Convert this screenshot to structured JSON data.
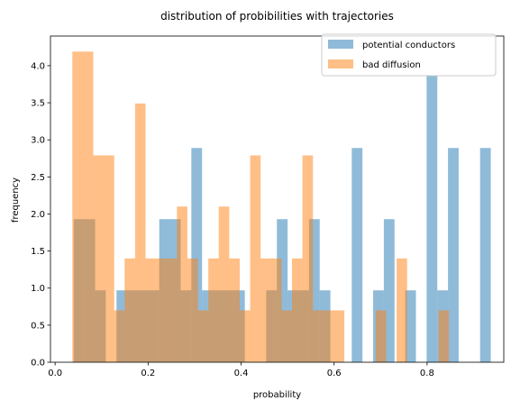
{
  "chart_data": {
    "type": "bar",
    "title": "distribution of probibilities with trajectories",
    "xlabel": "probability",
    "ylabel": "frequency",
    "xlim": [
      -0.01,
      0.965
    ],
    "ylim": [
      0,
      4.4
    ],
    "xticks": [
      "0.0",
      "0.2",
      "0.4",
      "0.6",
      "0.8"
    ],
    "xtick_values": [
      0.0,
      0.2,
      0.4,
      0.6,
      0.8
    ],
    "yticks": [
      "0.0",
      "0.5",
      "1.0",
      "1.5",
      "2.0",
      "2.5",
      "3.0",
      "3.5",
      "4.0"
    ],
    "ytick_values": [
      0.0,
      0.5,
      1.0,
      1.5,
      2.0,
      2.5,
      3.0,
      3.5,
      4.0
    ],
    "legend_position": "upper right",
    "grid": false,
    "series": [
      {
        "name": "potential conductors",
        "color": "#1f77b4",
        "opacity": 0.5,
        "bin_edges": [
          0.04,
          0.063,
          0.086,
          0.109,
          0.132,
          0.155,
          0.178,
          0.201,
          0.224,
          0.247,
          0.27,
          0.293,
          0.316,
          0.339,
          0.362,
          0.385,
          0.408,
          0.431,
          0.454,
          0.477,
          0.5,
          0.523,
          0.546,
          0.569,
          0.592,
          0.615,
          0.638,
          0.661,
          0.684,
          0.707,
          0.73,
          0.753,
          0.776,
          0.799,
          0.822,
          0.845,
          0.868,
          0.891,
          0.914,
          0.937
        ],
        "counts": [
          1.93,
          1.93,
          0.97,
          0,
          0.97,
          0.97,
          0.97,
          0.97,
          1.93,
          1.93,
          0.97,
          2.89,
          0.97,
          0.97,
          0.97,
          0.97,
          0,
          0,
          0.97,
          1.93,
          0.97,
          0.97,
          1.93,
          0.97,
          0,
          0,
          2.89,
          0,
          0.97,
          1.93,
          0,
          0.97,
          0,
          3.86,
          0.97,
          2.89,
          0,
          0,
          2.89
        ]
      },
      {
        "name": "bad diffusion",
        "color": "#ff7f0e",
        "opacity": 0.5,
        "bin_edges": [
          0.037,
          0.0595,
          0.082,
          0.1045,
          0.127,
          0.1495,
          0.172,
          0.1945,
          0.217,
          0.2395,
          0.262,
          0.2845,
          0.307,
          0.3295,
          0.352,
          0.3745,
          0.397,
          0.4195,
          0.442,
          0.4645,
          0.487,
          0.5095,
          0.532,
          0.5545,
          0.577,
          0.5995,
          0.622,
          0.6445,
          0.667,
          0.6895,
          0.712,
          0.7345,
          0.757,
          0.7795,
          0.802,
          0.8245,
          0.847,
          0.8695
        ],
        "counts": [
          4.19,
          4.19,
          2.79,
          2.79,
          0.7,
          1.4,
          3.49,
          1.4,
          1.4,
          1.4,
          2.1,
          1.4,
          0.7,
          1.4,
          2.1,
          1.4,
          0.7,
          2.79,
          1.4,
          1.4,
          0.7,
          1.4,
          2.79,
          0.7,
          0.7,
          0.7,
          0,
          0,
          0,
          0.7,
          0,
          1.4,
          0,
          0,
          0,
          0.7,
          0
        ]
      }
    ]
  }
}
